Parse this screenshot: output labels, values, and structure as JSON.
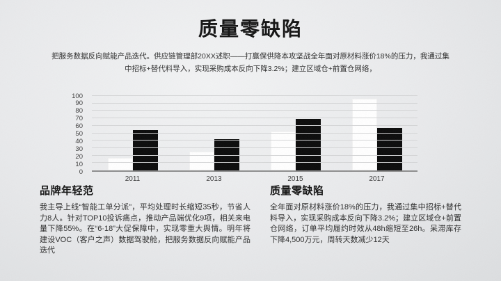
{
  "slide": {
    "title": "质量零缺陷",
    "subtitle": "把服务数据反向赋能产品迭代。供应链管理部20XX述职——打赢保供降本攻坚战全年面对原材料涨价18%的压力，我通过集中招标+替代料导入，实现采购成本反向下降3.2%；建立区域仓+前置仓网络，"
  },
  "chart_data": {
    "type": "bar",
    "title": "",
    "xlabel": "",
    "ylabel": "",
    "categories": [
      "2011",
      "2013",
      "2015",
      "2017"
    ],
    "series": [
      {
        "name": "white",
        "color": "#ffffff",
        "values": [
          17,
          25,
          52,
          96
        ]
      },
      {
        "name": "black",
        "color": "#0b0b0b",
        "values": [
          54,
          42,
          69,
          57
        ]
      }
    ],
    "ylim": [
      0,
      100
    ],
    "ytick_step": 10,
    "grid": true,
    "legend_position": "none"
  },
  "sections": [
    {
      "title": "品牌年轻范",
      "body": "我主导上线“智能工单分派”，平均处理时长缩短35秒，节省人力8人。针对TOP10投诉痛点，推动产品端优化9项，相关来电量下降55%。在“6·18”大促保障中，实现零重大舆情。明年将建设VOC（客户之声）数据驾驶舱，把服务数据反向赋能产品迭代"
    },
    {
      "title": "质量零缺陷",
      "body": "全年面对原材料涨价18%的压力，我通过集中招标+替代料导入，实现采购成本反向下降3.2%；建立区域仓+前置仓网络，订单平均履约时效从48h缩短至26h。呆滞库存下降4,500万元，周转天数减少12天"
    }
  ],
  "colors": {
    "background_center": "#f2f3f4",
    "background_edge": "#dcdee0",
    "title_text": "#141414",
    "body_text": "#2d2d2d",
    "gridline": "#d4d5d6",
    "axis_line": "#8d8d8d",
    "bar_white": "#ffffff",
    "bar_black": "#0b0b0b"
  }
}
